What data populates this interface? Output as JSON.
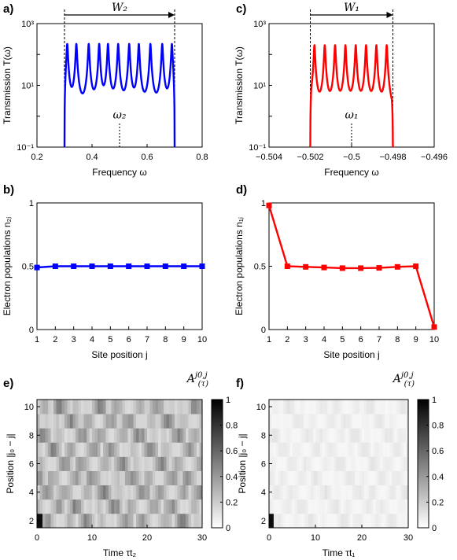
{
  "chart_data": [
    {
      "panel_label": "a)",
      "type": "line",
      "xlabel": "Frequency ω",
      "ylabel": "Transmission T(ω)",
      "xlim": [
        0.2,
        0.8
      ],
      "ylim": [
        0.1,
        1000
      ],
      "y_scale": "log",
      "x_ticks": [
        0.2,
        0.4,
        0.6,
        0.8
      ],
      "x_tick_labels": [
        "0.2",
        "0.4",
        "0.6",
        "0.8"
      ],
      "y_tick_labels": [
        "10⁻¹",
        "10¹",
        "10³"
      ],
      "color": "#0000ff",
      "band": [
        0.3,
        0.7
      ],
      "peaks": [
        0.31,
        0.343,
        0.388,
        0.426,
        0.458,
        0.495,
        0.535,
        0.57,
        0.612,
        0.655,
        0.69
      ],
      "peak_value": 220,
      "center_marker": 0.5,
      "center_label": "ω₂",
      "width_label": "W₂"
    },
    {
      "panel_label": "c)",
      "type": "line",
      "xlabel": "Frequency ω",
      "ylabel": "Transmission T(ω)",
      "xlim": [
        -0.504,
        -0.496
      ],
      "ylim": [
        0.1,
        1000
      ],
      "y_scale": "log",
      "x_ticks": [
        -0.504,
        -0.502,
        -0.5,
        -0.498,
        -0.496
      ],
      "x_tick_labels": [
        "−0.504",
        "−0.502",
        "−0.5",
        "−0.498",
        "−0.496"
      ],
      "y_tick_labels": [
        "10⁻¹",
        "10¹",
        "10³"
      ],
      "color": "#ff0000",
      "band": [
        -0.502,
        -0.498
      ],
      "peaks": [
        -0.5018,
        -0.5013,
        -0.5008,
        -0.5003,
        -0.4998,
        -0.4993,
        -0.4988,
        -0.4983
      ],
      "peak_value": 200,
      "center_marker": -0.5,
      "center_label": "ω₁",
      "width_label": "W₁"
    },
    {
      "panel_label": "b)",
      "type": "line",
      "xlabel": "Site position j",
      "ylabel": "Electron populations n₂ⱼ",
      "xlim": [
        1,
        10
      ],
      "ylim": [
        0,
        1
      ],
      "x_ticks": [
        1,
        2,
        3,
        4,
        5,
        6,
        7,
        8,
        9,
        10
      ],
      "y_ticks": [
        0,
        0.5,
        1
      ],
      "y_tick_labels": [
        "0",
        "0.5",
        "1"
      ],
      "color": "#0000ff",
      "x": [
        1,
        2,
        3,
        4,
        5,
        6,
        7,
        8,
        9,
        10
      ],
      "y": [
        0.49,
        0.5,
        0.5,
        0.5,
        0.5,
        0.5,
        0.5,
        0.5,
        0.5,
        0.5
      ]
    },
    {
      "panel_label": "d)",
      "type": "line",
      "xlabel": "Site position j",
      "ylabel": "Electron populations n₁ⱼ",
      "xlim": [
        1,
        10
      ],
      "ylim": [
        0,
        1
      ],
      "x_ticks": [
        1,
        2,
        3,
        4,
        5,
        6,
        7,
        8,
        9,
        10
      ],
      "y_ticks": [
        0,
        0.5,
        1
      ],
      "y_tick_labels": [
        "0",
        "0.5",
        "1"
      ],
      "color": "#ff0000",
      "x": [
        1,
        2,
        3,
        4,
        5,
        6,
        7,
        8,
        9,
        10
      ],
      "y": [
        0.98,
        0.5,
        0.495,
        0.49,
        0.485,
        0.485,
        0.487,
        0.495,
        0.5,
        0.02
      ]
    },
    {
      "panel_label": "e)",
      "type": "heatmap",
      "title": "A(2) j0,j (τ)",
      "xlabel": "Time τt₂",
      "ylabel": "Position |j₀ − j|",
      "xlim": [
        0,
        30
      ],
      "ylim": [
        1.5,
        10.5
      ],
      "x_ticks": [
        0,
        10,
        20,
        30
      ],
      "y_ticks": [
        2,
        4,
        6,
        8,
        10
      ],
      "colorbar_ticks": [
        "0",
        "0.2",
        "0.4",
        "0.6",
        "0.8",
        "1"
      ],
      "colormap": "gray_reversed",
      "intensity": 0.55
    },
    {
      "panel_label": "f)",
      "type": "heatmap",
      "title": "A(1) j0,j (τ)",
      "xlabel": "Time τt₁",
      "ylabel": "Position |j₀ − j|",
      "xlim": [
        0,
        30
      ],
      "ylim": [
        1.5,
        10.5
      ],
      "x_ticks": [
        0,
        10,
        20,
        30
      ],
      "y_ticks": [
        2,
        4,
        6,
        8,
        10
      ],
      "colorbar_ticks": [
        "0",
        "0.2",
        "0.4",
        "0.6",
        "0.8",
        "1"
      ],
      "colormap": "gray_reversed",
      "intensity": 0.12
    }
  ]
}
